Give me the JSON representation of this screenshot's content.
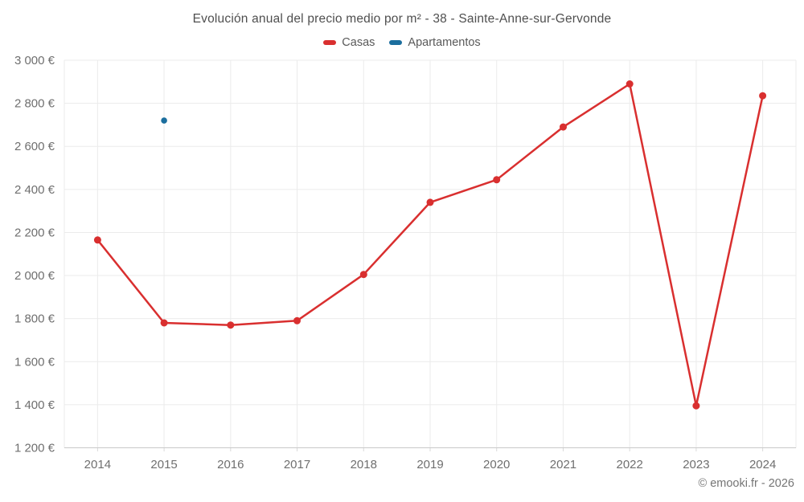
{
  "header": {
    "title": "Evolución anual del precio medio por m² - 38 - Sainte-Anne-sur-Gervonde",
    "legend": [
      {
        "label": "Casas",
        "color": "#d92f2f"
      },
      {
        "label": "Apartamentos",
        "color": "#1b6e9e"
      }
    ]
  },
  "footer": {
    "credit": "© emooki.fr - 2026"
  },
  "chart_data": {
    "type": "line",
    "title": "Evolución anual del precio medio por m² - 38 - Sainte-Anne-sur-Gervonde",
    "categories": [
      "2014",
      "2015",
      "2016",
      "2017",
      "2018",
      "2019",
      "2020",
      "2021",
      "2022",
      "2023",
      "2024"
    ],
    "series": [
      {
        "name": "Casas",
        "color": "#d92f2f",
        "values": [
          2165,
          1780,
          1770,
          1790,
          2005,
          2340,
          2445,
          2690,
          2890,
          1395,
          2835
        ]
      },
      {
        "name": "Apartamentos",
        "color": "#1b6e9e",
        "values": [
          null,
          2720,
          null,
          null,
          null,
          null,
          null,
          null,
          null,
          null,
          null
        ]
      }
    ],
    "xlabel": "",
    "ylabel": "",
    "unit": "€",
    "ylim": [
      1200,
      3000
    ],
    "y_tick_step": 200,
    "y_tick_labels": [
      "1 200 €",
      "1 400 €",
      "1 600 €",
      "1 800 €",
      "2 000 €",
      "2 200 €",
      "2 400 €",
      "2 600 €",
      "2 800 €",
      "3 000 €"
    ],
    "grid": true,
    "legend_position": "top"
  }
}
